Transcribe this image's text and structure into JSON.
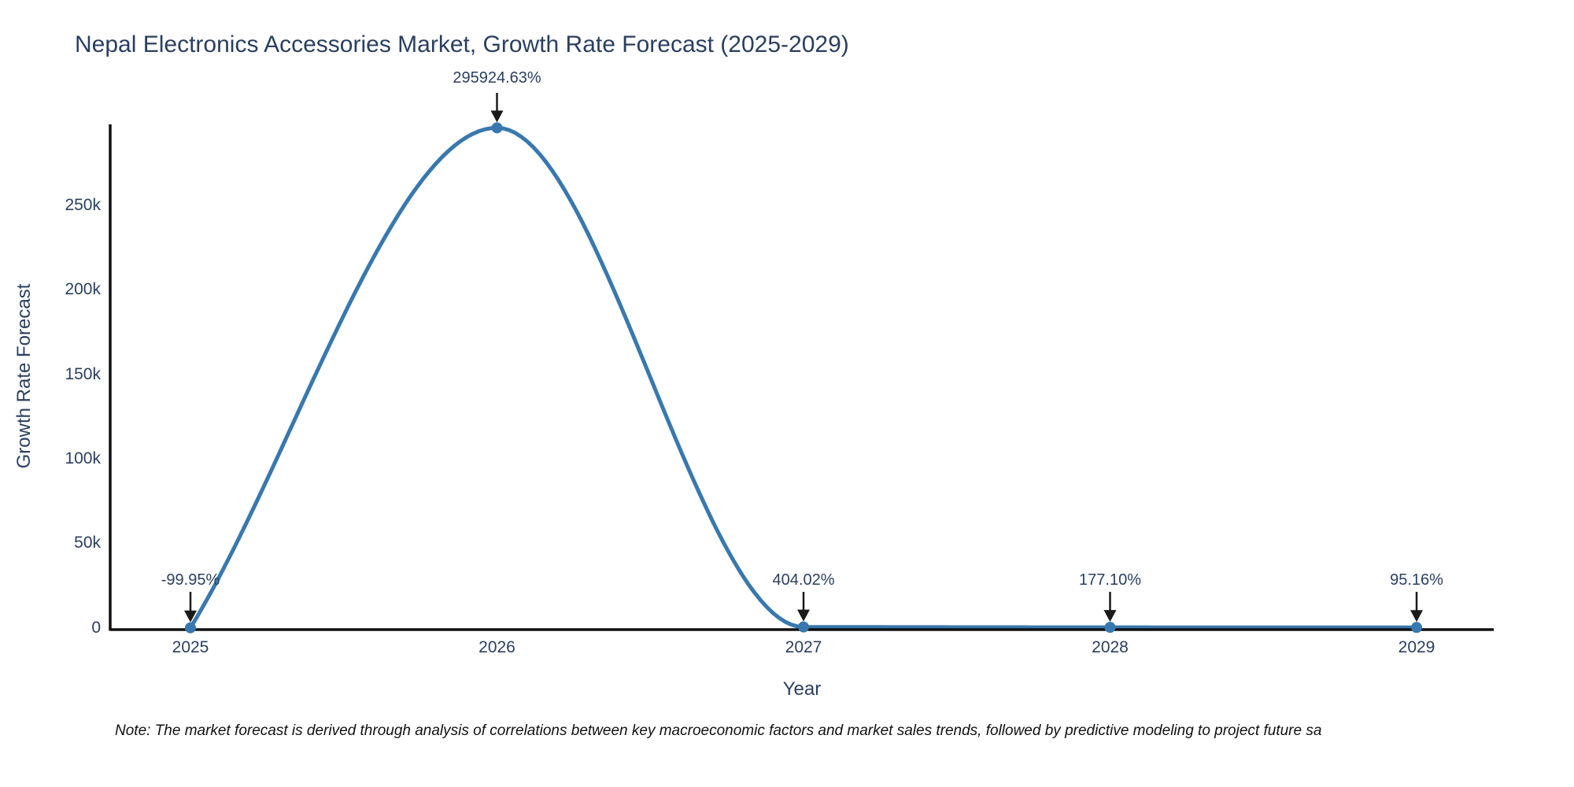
{
  "note": "Note: The market forecast is derived through analysis of correlations between key macroeconomic factors and market sales trends, followed by predictive modeling to project future sa",
  "chart_data": {
    "type": "line",
    "title": "Nepal Electronics Accessories Market, Growth Rate Forecast (2025-2029)",
    "xlabel": "Year",
    "ylabel": "Growth Rate Forecast",
    "x": [
      2025,
      2026,
      2027,
      2028,
      2029
    ],
    "values": [
      -99.95,
      295924.63,
      404.02,
      177.1,
      95.16
    ],
    "point_labels": [
      "-99.95%",
      "295924.63%",
      "404.02%",
      "177.10%",
      "95.16%"
    ],
    "xticks": [
      "2025",
      "2026",
      "2027",
      "2028",
      "2029"
    ],
    "yticks": [
      {
        "value": 0,
        "label": "0"
      },
      {
        "value": 50000,
        "label": "50k"
      },
      {
        "value": 100000,
        "label": "100k"
      },
      {
        "value": 150000,
        "label": "150k"
      },
      {
        "value": 200000,
        "label": "200k"
      },
      {
        "value": 250000,
        "label": "250k"
      }
    ],
    "ylim": [
      0,
      300000
    ],
    "line_shape": "spline",
    "grid": false,
    "legend": "none",
    "colors": {
      "line": "#3878af",
      "axis": "#111111",
      "text": "#2a3f5f",
      "arrow": "#1a1a1a",
      "note": "#111111",
      "background": "#ffffff"
    }
  }
}
